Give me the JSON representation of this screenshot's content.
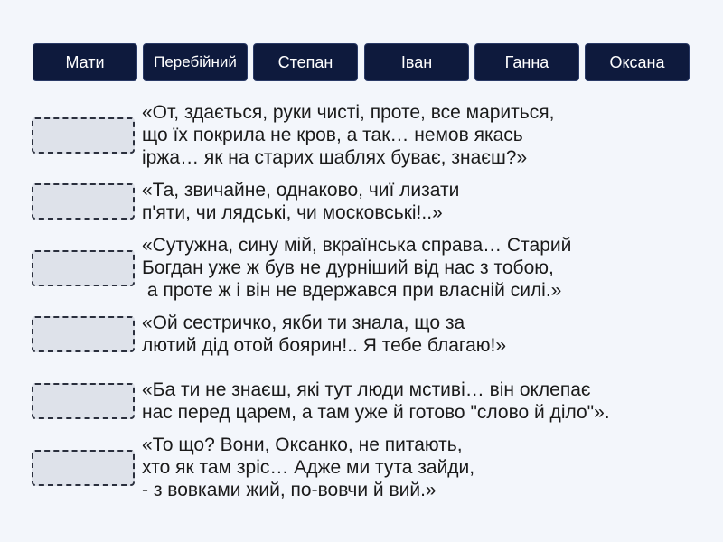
{
  "names": [
    "Мати",
    "Перебійний",
    "Степан",
    "Іван",
    "Ганна",
    "Оксана"
  ],
  "quotes": [
    "«От, здається, руки чисті, проте, все мариться,\nщо їх покрила не кров, а так… немов якась\nіржа… як на старих шаблях буває, знаєш?»",
    "«Та, звичайне, однаково, чиї лизати\nп'яти, чи лядські, чи московські!..»",
    "«Сутужна, сину мій, вкраїнська справа… Старий\nБогдан уже ж був не дурніший від нас з тобою,\n а проте ж і він не вдержався при власній силі.»",
    "«Ой сестричко, якби ти знала, що за\nлютий дід отой боярин!.. Я тебе благаю!»",
    "«Ба ти не знаєш, які тут люди мстиві… він оклепає\nнас перед царем, а там уже й готово \"слово й діло\"».",
    "«То що? Вони, Оксанко, не питають,\nхто як там зріс… Адже ми тута зайди,\n- з вовками жий, по-вовчи й вий.»"
  ]
}
